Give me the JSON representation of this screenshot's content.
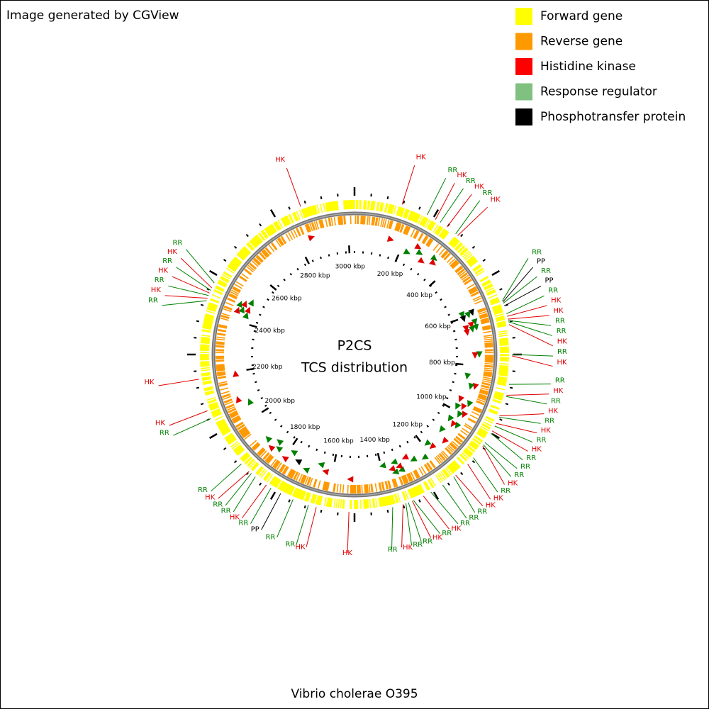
{
  "header": {
    "title": "Image generated by CGView"
  },
  "legend": [
    {
      "label": "Forward gene",
      "color": "#ffff00"
    },
    {
      "label": "Reverse gene",
      "color": "#ff9900"
    },
    {
      "label": "Histidine kinase",
      "color": "#ff0000"
    },
    {
      "label": "Response regulator",
      "color": "#80c080"
    },
    {
      "label": "Phosphotransfer protein",
      "color": "#000000"
    }
  ],
  "center": {
    "title": "P2CS",
    "subtitle": "TCS distribution"
  },
  "footer": {
    "caption": "Vibrio cholerae O395"
  },
  "map": {
    "xlim": [
      0,
      3024
    ],
    "xticks": [
      {
        "value": 200,
        "label": "200 kbp"
      },
      {
        "value": 400,
        "label": "400 kbp"
      },
      {
        "value": 600,
        "label": "600 kbp"
      },
      {
        "value": 800,
        "label": "800 kbp"
      },
      {
        "value": 1000,
        "label": "1000 kbp"
      },
      {
        "value": 1200,
        "label": "1200 kbp"
      },
      {
        "value": 1400,
        "label": "1400 kbp"
      },
      {
        "value": 1600,
        "label": "1600 kbp"
      },
      {
        "value": 1800,
        "label": "1800 kbp"
      },
      {
        "value": 2000,
        "label": "2000 kbp"
      },
      {
        "value": 2200,
        "label": "2200 kbp"
      },
      {
        "value": 2400,
        "label": "2400 kbp"
      },
      {
        "value": 2600,
        "label": "2600 kbp"
      },
      {
        "value": 2800,
        "label": "2800 kbp"
      },
      {
        "value": 3000,
        "label": "3000 kbp"
      }
    ],
    "features": [
      {
        "label": "HK",
        "position": 148,
        "color": "#e00000"
      },
      {
        "label": "RR",
        "position": 231,
        "color": "#008000"
      },
      {
        "label": "HK",
        "position": 260,
        "color": "#e00000"
      },
      {
        "label": "RR",
        "position": 277,
        "color": "#008000"
      },
      {
        "label": "HK",
        "position": 302,
        "color": "#e00000"
      },
      {
        "label": "RR",
        "position": 336,
        "color": "#008000"
      },
      {
        "label": "HK",
        "position": 344,
        "color": "#e00000"
      },
      {
        "label": "RR",
        "position": 588,
        "color": "#008000"
      },
      {
        "label": "PP",
        "position": 592,
        "color": "#000000"
      },
      {
        "label": "RR",
        "position": 596,
        "color": "#008000"
      },
      {
        "label": "PP",
        "position": 605,
        "color": "#000000"
      },
      {
        "label": "RR",
        "position": 630,
        "color": "#008000"
      },
      {
        "label": "HK",
        "position": 638,
        "color": "#e00000"
      },
      {
        "label": "HK",
        "position": 647,
        "color": "#e00000"
      },
      {
        "label": "RR",
        "position": 651,
        "color": "#008000"
      },
      {
        "label": "RR",
        "position": 655,
        "color": "#008000"
      },
      {
        "label": "HK",
        "position": 664,
        "color": "#e00000"
      },
      {
        "label": "RR",
        "position": 756,
        "color": "#008000"
      },
      {
        "label": "HK",
        "position": 760,
        "color": "#e00000"
      },
      {
        "label": "RR",
        "position": 848,
        "color": "#008000"
      },
      {
        "label": "HK",
        "position": 882,
        "color": "#e00000"
      },
      {
        "label": "RR",
        "position": 886,
        "color": "#008000"
      },
      {
        "label": "HK",
        "position": 949,
        "color": "#e00000"
      },
      {
        "label": "RR",
        "position": 953,
        "color": "#008000"
      },
      {
        "label": "HK",
        "position": 974,
        "color": "#e00000"
      },
      {
        "label": "RR",
        "position": 983,
        "color": "#008000"
      },
      {
        "label": "HK",
        "position": 1000,
        "color": "#e00000"
      },
      {
        "label": "RR",
        "position": 1008,
        "color": "#008000"
      },
      {
        "label": "RR",
        "position": 1042,
        "color": "#008000"
      },
      {
        "label": "RR",
        "position": 1050,
        "color": "#008000"
      },
      {
        "label": "HK",
        "position": 1054,
        "color": "#e00000"
      },
      {
        "label": "RR",
        "position": 1100,
        "color": "#008000"
      },
      {
        "label": "HK",
        "position": 1126,
        "color": "#e00000"
      },
      {
        "label": "HK",
        "position": 1176,
        "color": "#e00000"
      },
      {
        "label": "RR",
        "position": 1184,
        "color": "#008000"
      },
      {
        "label": "RR",
        "position": 1226,
        "color": "#008000"
      },
      {
        "label": "RR",
        "position": 1268,
        "color": "#008000"
      },
      {
        "label": "HK",
        "position": 1294,
        "color": "#e00000"
      },
      {
        "label": "RR",
        "position": 1327,
        "color": "#008000"
      },
      {
        "label": "HK",
        "position": 1331,
        "color": "#e00000"
      },
      {
        "label": "RR",
        "position": 1344,
        "color": "#008000"
      },
      {
        "label": "RR",
        "position": 1352,
        "color": "#008000"
      },
      {
        "label": "HK",
        "position": 1361,
        "color": "#e00000"
      },
      {
        "label": "RR",
        "position": 1394,
        "color": "#008000"
      },
      {
        "label": "HK",
        "position": 1529,
        "color": "#e00000"
      },
      {
        "label": "HK",
        "position": 1630,
        "color": "#e00000"
      },
      {
        "label": "RR",
        "position": 1655,
        "color": "#008000"
      },
      {
        "label": "RR",
        "position": 1705,
        "color": "#008000"
      },
      {
        "label": "PP",
        "position": 1747,
        "color": "#000000"
      },
      {
        "label": "RR",
        "position": 1781,
        "color": "#008000"
      },
      {
        "label": "HK",
        "position": 1798,
        "color": "#e00000"
      },
      {
        "label": "RR",
        "position": 1840,
        "color": "#008000"
      },
      {
        "label": "RR",
        "position": 1856,
        "color": "#008000"
      },
      {
        "label": "HK",
        "position": 1865,
        "color": "#e00000"
      },
      {
        "label": "RR",
        "position": 1898,
        "color": "#008000"
      },
      {
        "label": "RR",
        "position": 2066,
        "color": "#008000"
      },
      {
        "label": "HK",
        "position": 2092,
        "color": "#e00000"
      },
      {
        "label": "HK",
        "position": 2192,
        "color": "#e00000"
      },
      {
        "label": "RR",
        "position": 2436,
        "color": "#008000"
      },
      {
        "label": "HK",
        "position": 2444,
        "color": "#e00000"
      },
      {
        "label": "RR",
        "position": 2453,
        "color": "#008000"
      },
      {
        "label": "HK",
        "position": 2461,
        "color": "#e00000"
      },
      {
        "label": "RR",
        "position": 2470,
        "color": "#008000"
      },
      {
        "label": "HK",
        "position": 2478,
        "color": "#e00000"
      },
      {
        "label": "RR",
        "position": 2495,
        "color": "#008000"
      },
      {
        "label": "HK",
        "position": 2856,
        "color": "#e00000"
      }
    ]
  }
}
